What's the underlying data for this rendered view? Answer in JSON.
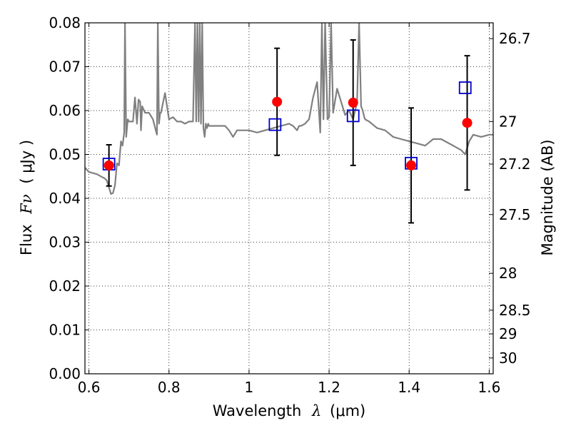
{
  "chart_data": {
    "type": "scatter",
    "xlabel_prefix": "Wavelength",
    "xlabel_symbol": "λ",
    "xlabel_unit": "(μm)",
    "ylabel_prefix": "Flux",
    "ylabel_symbol": "Fν",
    "ylabel_unit": "( μJy )",
    "y2label": "Magnitude (AB)",
    "xlim": [
      0.59,
      1.61
    ],
    "ylim": [
      0.0,
      0.08
    ],
    "x_ticks": [
      0.6,
      0.8,
      1.0,
      1.2,
      1.4,
      1.6
    ],
    "x_tick_labels": [
      "0.6",
      "0.8",
      "1",
      "1.2",
      "1.4",
      "1.6"
    ],
    "y_ticks": [
      0.0,
      0.01,
      0.02,
      0.03,
      0.04,
      0.05,
      0.06,
      0.07,
      0.08
    ],
    "y_tick_labels": [
      "0.00",
      "0.01",
      "0.02",
      "0.03",
      "0.04",
      "0.05",
      "0.06",
      "0.07",
      "0.08"
    ],
    "y2_ticks": [
      {
        "label": "26.7",
        "flux": 0.0764
      },
      {
        "label": "27",
        "flux": 0.0575
      },
      {
        "label": "27.2",
        "flux": 0.0478
      },
      {
        "label": "27.5",
        "flux": 0.0363
      },
      {
        "label": "28",
        "flux": 0.0229
      },
      {
        "label": "28.5",
        "flux": 0.0145
      },
      {
        "label": "29",
        "flux": 0.0091
      },
      {
        "label": "30",
        "flux": 0.0036
      }
    ],
    "grid": true,
    "series": [
      {
        "kind": "observed",
        "color": "#ff0000",
        "points": [
          {
            "x": 0.65,
            "y": 0.0475,
            "err": 0.0047
          },
          {
            "x": 1.07,
            "y": 0.062,
            "err": 0.0122
          },
          {
            "x": 1.26,
            "y": 0.0618,
            "err": 0.0143
          },
          {
            "x": 1.405,
            "y": 0.0475,
            "err": 0.0131
          },
          {
            "x": 1.545,
            "y": 0.0572,
            "err": 0.0153
          }
        ]
      },
      {
        "kind": "model-synthetic",
        "color": "#0000cc",
        "points": [
          {
            "x": 0.65,
            "y": 0.0478
          },
          {
            "x": 1.065,
            "y": 0.0568
          },
          {
            "x": 1.26,
            "y": 0.0588
          },
          {
            "x": 1.405,
            "y": 0.048
          },
          {
            "x": 1.54,
            "y": 0.0652
          }
        ]
      },
      {
        "kind": "template-spectrum",
        "color": "#808080",
        "x": [
          0.59,
          0.6,
          0.62,
          0.63,
          0.64,
          0.645,
          0.65,
          0.655,
          0.66,
          0.665,
          0.67,
          0.675,
          0.68,
          0.684,
          0.688,
          0.69,
          0.693,
          0.697,
          0.7,
          0.71,
          0.715,
          0.72,
          0.724,
          0.728,
          0.73,
          0.733,
          0.74,
          0.75,
          0.76,
          0.77,
          0.772,
          0.775,
          0.778,
          0.78,
          0.79,
          0.8,
          0.81,
          0.82,
          0.83,
          0.84,
          0.85,
          0.86,
          0.865,
          0.868,
          0.871,
          0.874,
          0.877,
          0.88,
          0.883,
          0.886,
          0.889,
          0.892,
          0.895,
          0.898,
          0.9,
          0.92,
          0.94,
          0.95,
          0.96,
          0.97,
          0.98,
          1.0,
          1.02,
          1.04,
          1.06,
          1.08,
          1.1,
          1.11,
          1.12,
          1.125,
          1.13,
          1.14,
          1.15,
          1.16,
          1.17,
          1.178,
          1.182,
          1.186,
          1.19,
          1.196,
          1.2,
          1.205,
          1.21,
          1.22,
          1.23,
          1.24,
          1.25,
          1.26,
          1.27,
          1.275,
          1.28,
          1.284,
          1.288,
          1.29,
          1.3,
          1.32,
          1.34,
          1.36,
          1.38,
          1.4,
          1.42,
          1.44,
          1.46,
          1.48,
          1.5,
          1.52,
          1.53,
          1.54,
          1.55,
          1.56,
          1.58,
          1.6,
          1.61
        ],
        "y": [
          0.047,
          0.046,
          0.0455,
          0.045,
          0.0445,
          0.044,
          0.0425,
          0.041,
          0.0412,
          0.043,
          0.048,
          0.0475,
          0.053,
          0.052,
          0.055,
          0.08,
          0.054,
          0.058,
          0.0575,
          0.0575,
          0.063,
          0.057,
          0.0625,
          0.062,
          0.0555,
          0.061,
          0.0595,
          0.0595,
          0.058,
          0.0545,
          0.08,
          0.057,
          0.0595,
          0.0595,
          0.064,
          0.058,
          0.0585,
          0.0575,
          0.0575,
          0.057,
          0.0575,
          0.0575,
          0.08,
          0.0575,
          0.08,
          0.0575,
          0.08,
          0.057,
          0.08,
          0.056,
          0.054,
          0.057,
          0.056,
          0.057,
          0.0565,
          0.0565,
          0.0565,
          0.0555,
          0.054,
          0.0555,
          0.0555,
          0.0555,
          0.055,
          0.0555,
          0.056,
          0.0565,
          0.057,
          0.0565,
          0.0555,
          0.0565,
          0.0565,
          0.057,
          0.058,
          0.063,
          0.0665,
          0.055,
          0.08,
          0.058,
          0.08,
          0.058,
          0.0585,
          0.08,
          0.0595,
          0.065,
          0.062,
          0.059,
          0.06,
          0.058,
          0.062,
          0.08,
          0.061,
          0.06,
          0.0585,
          0.058,
          0.0575,
          0.056,
          0.0555,
          0.054,
          0.0535,
          0.053,
          0.0525,
          0.052,
          0.0535,
          0.0535,
          0.0525,
          0.0515,
          0.051,
          0.05,
          0.053,
          0.0545,
          0.054,
          0.0545,
          0.0545
        ]
      }
    ]
  }
}
